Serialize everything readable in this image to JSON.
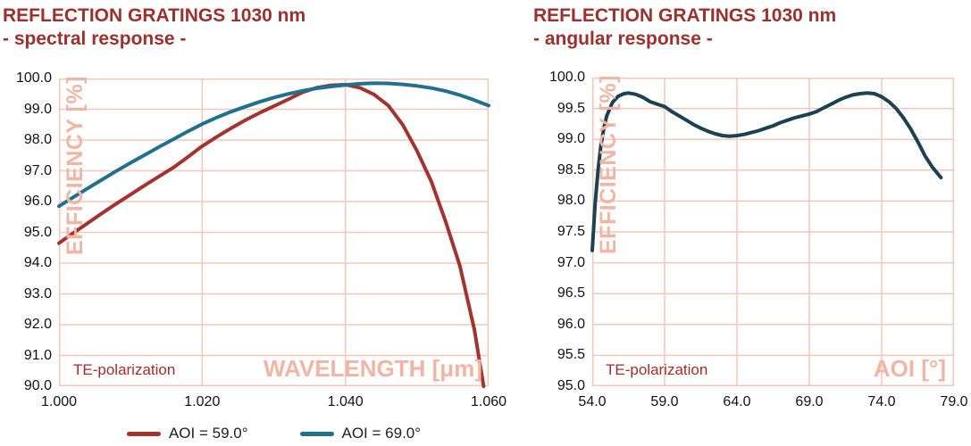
{
  "colors": {
    "background": "#ffffff",
    "title_red": "#9d2f2c",
    "axis_label_pink": "#f1b5a5",
    "grid_pink": "#f3c7ba",
    "tick_text": "#111111",
    "legend_text": "#1f1f1f"
  },
  "chart_data": [
    {
      "type": "line",
      "title": "REFLECTION GRATINGS 1030 nm",
      "subtitle": "- spectral response -",
      "xlabel": "WAVELENGTH [μm]",
      "ylabel": "EFFICIENCY [%]",
      "annotation": "TE-polarization",
      "xlim": [
        1.0,
        1.06
      ],
      "ylim": [
        90.0,
        100.0
      ],
      "x_tick_labels": [
        "1.000",
        "1.020",
        "1.040",
        "1.060"
      ],
      "y_tick_labels": [
        "100.0",
        "99.0",
        "98.0",
        "97.0",
        "96.0",
        "95.0",
        "94.0",
        "93.0",
        "92.0",
        "91.0",
        "90.0"
      ],
      "grid": true,
      "legend_position": "below",
      "series": [
        {
          "name": "AOI = 59.0°",
          "color": "#a3332e",
          "x": [
            1.0,
            1.002,
            1.004,
            1.006,
            1.008,
            1.01,
            1.012,
            1.014,
            1.016,
            1.018,
            1.02,
            1.022,
            1.024,
            1.026,
            1.028,
            1.03,
            1.032,
            1.034,
            1.036,
            1.038,
            1.04,
            1.042,
            1.044,
            1.046,
            1.048,
            1.05,
            1.052,
            1.054,
            1.056,
            1.058,
            1.0593
          ],
          "y": [
            94.65,
            94.98,
            95.3,
            95.62,
            95.93,
            96.23,
            96.53,
            96.82,
            97.11,
            97.45,
            97.8,
            98.1,
            98.38,
            98.64,
            98.88,
            99.1,
            99.32,
            99.55,
            99.7,
            99.78,
            99.8,
            99.7,
            99.48,
            99.12,
            98.5,
            97.65,
            96.65,
            95.35,
            93.9,
            91.85,
            90.0
          ]
        },
        {
          "name": "AOI = 69.0°",
          "color": "#20708e",
          "x": [
            1.0,
            1.002,
            1.004,
            1.006,
            1.008,
            1.01,
            1.012,
            1.014,
            1.016,
            1.018,
            1.02,
            1.022,
            1.024,
            1.026,
            1.028,
            1.03,
            1.032,
            1.034,
            1.036,
            1.038,
            1.04,
            1.042,
            1.044,
            1.046,
            1.048,
            1.05,
            1.052,
            1.054,
            1.056,
            1.058,
            1.06
          ],
          "y": [
            95.85,
            96.14,
            96.43,
            96.71,
            96.99,
            97.26,
            97.52,
            97.78,
            98.03,
            98.28,
            98.52,
            98.73,
            98.92,
            99.08,
            99.24,
            99.38,
            99.5,
            99.6,
            99.68,
            99.74,
            99.79,
            99.83,
            99.85,
            99.84,
            99.81,
            99.76,
            99.69,
            99.59,
            99.46,
            99.3,
            99.12
          ]
        }
      ]
    },
    {
      "type": "line",
      "title": "REFLECTION GRATINGS 1030 nm",
      "subtitle": "- angular response -",
      "xlabel": "AOI [°]",
      "ylabel": "EFFICIENCY [%]",
      "annotation": "TE-polarization",
      "xlim": [
        54.0,
        79.0
      ],
      "ylim": [
        95.0,
        100.0
      ],
      "x_tick_labels": [
        "54.0",
        "59.0",
        "64.0",
        "69.0",
        "74.0",
        "79.0"
      ],
      "y_tick_labels": [
        "100.0",
        "99.5",
        "99.0",
        "98.5",
        "98.0",
        "97.5",
        "97.0",
        "96.5",
        "96.0",
        "95.5",
        "95.0"
      ],
      "grid": true,
      "legend_position": "none",
      "series": [
        {
          "color": "#1a4251",
          "x": [
            54.0,
            54.2,
            54.4,
            54.6,
            54.8,
            55.0,
            55.4,
            55.8,
            56.2,
            56.5,
            57.0,
            57.5,
            58.0,
            58.5,
            59.0,
            59.5,
            60.0,
            60.5,
            61.0,
            61.5,
            62.0,
            62.5,
            63.0,
            63.5,
            64.0,
            64.5,
            65.0,
            65.5,
            66.0,
            66.5,
            67.0,
            67.5,
            68.0,
            68.5,
            69.0,
            69.5,
            70.0,
            70.5,
            71.0,
            71.5,
            72.0,
            72.5,
            73.0,
            73.5,
            74.0,
            74.5,
            75.0,
            75.5,
            76.0,
            76.5,
            77.0,
            77.5,
            78.1
          ],
          "y": [
            97.2,
            97.95,
            98.5,
            98.9,
            99.18,
            99.38,
            99.6,
            99.7,
            99.74,
            99.75,
            99.73,
            99.68,
            99.61,
            99.57,
            99.53,
            99.45,
            99.38,
            99.31,
            99.24,
            99.18,
            99.13,
            99.09,
            99.06,
            99.05,
            99.06,
            99.08,
            99.11,
            99.14,
            99.18,
            99.22,
            99.27,
            99.31,
            99.35,
            99.38,
            99.41,
            99.45,
            99.51,
            99.57,
            99.63,
            99.68,
            99.72,
            99.74,
            99.75,
            99.74,
            99.69,
            99.61,
            99.5,
            99.35,
            99.17,
            98.96,
            98.73,
            98.55,
            98.38
          ]
        }
      ]
    }
  ]
}
